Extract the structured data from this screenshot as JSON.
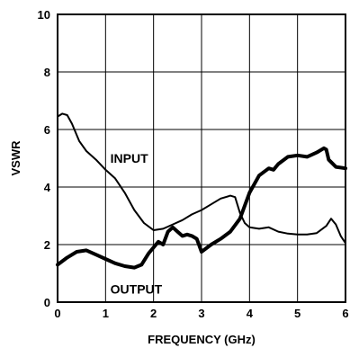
{
  "chart_data": {
    "type": "line",
    "xlabel": "FREQUENCY (GHz)",
    "ylabel": "VSWR",
    "xlim": [
      0,
      6
    ],
    "ylim": [
      0,
      10
    ],
    "x_ticks": [
      0,
      1,
      2,
      3,
      4,
      5,
      6
    ],
    "y_ticks": [
      0,
      2,
      4,
      6,
      8,
      10
    ],
    "grid": true,
    "legend": "none",
    "series": [
      {
        "name": "INPUT",
        "stroke_weight": "thin",
        "points": [
          [
            0,
            6.45
          ],
          [
            0.1,
            6.55
          ],
          [
            0.2,
            6.5
          ],
          [
            0.3,
            6.2
          ],
          [
            0.45,
            5.6
          ],
          [
            0.6,
            5.25
          ],
          [
            0.8,
            4.95
          ],
          [
            1.0,
            4.6
          ],
          [
            1.2,
            4.3
          ],
          [
            1.4,
            3.8
          ],
          [
            1.6,
            3.2
          ],
          [
            1.8,
            2.75
          ],
          [
            2.0,
            2.5
          ],
          [
            2.2,
            2.55
          ],
          [
            2.4,
            2.7
          ],
          [
            2.6,
            2.85
          ],
          [
            2.8,
            3.05
          ],
          [
            3.0,
            3.2
          ],
          [
            3.2,
            3.4
          ],
          [
            3.4,
            3.6
          ],
          [
            3.6,
            3.7
          ],
          [
            3.7,
            3.65
          ],
          [
            3.8,
            3.1
          ],
          [
            3.9,
            2.75
          ],
          [
            4.0,
            2.6
          ],
          [
            4.2,
            2.55
          ],
          [
            4.4,
            2.6
          ],
          [
            4.6,
            2.45
          ],
          [
            4.8,
            2.38
          ],
          [
            5.0,
            2.35
          ],
          [
            5.2,
            2.35
          ],
          [
            5.4,
            2.4
          ],
          [
            5.6,
            2.65
          ],
          [
            5.7,
            2.9
          ],
          [
            5.8,
            2.7
          ],
          [
            5.9,
            2.3
          ],
          [
            6.0,
            2.05
          ]
        ]
      },
      {
        "name": "OUTPUT",
        "stroke_weight": "thick",
        "points": [
          [
            0,
            1.3
          ],
          [
            0.2,
            1.55
          ],
          [
            0.4,
            1.75
          ],
          [
            0.6,
            1.8
          ],
          [
            0.8,
            1.65
          ],
          [
            1.0,
            1.5
          ],
          [
            1.2,
            1.35
          ],
          [
            1.4,
            1.25
          ],
          [
            1.6,
            1.2
          ],
          [
            1.75,
            1.3
          ],
          [
            1.9,
            1.7
          ],
          [
            2.1,
            2.1
          ],
          [
            2.2,
            2.0
          ],
          [
            2.3,
            2.45
          ],
          [
            2.4,
            2.6
          ],
          [
            2.5,
            2.45
          ],
          [
            2.6,
            2.3
          ],
          [
            2.7,
            2.35
          ],
          [
            2.8,
            2.3
          ],
          [
            2.9,
            2.2
          ],
          [
            3.0,
            1.75
          ],
          [
            3.2,
            2.0
          ],
          [
            3.4,
            2.2
          ],
          [
            3.6,
            2.45
          ],
          [
            3.8,
            2.9
          ],
          [
            3.9,
            3.35
          ],
          [
            4.0,
            3.8
          ],
          [
            4.2,
            4.4
          ],
          [
            4.4,
            4.65
          ],
          [
            4.5,
            4.6
          ],
          [
            4.6,
            4.8
          ],
          [
            4.8,
            5.05
          ],
          [
            5.0,
            5.1
          ],
          [
            5.2,
            5.05
          ],
          [
            5.4,
            5.2
          ],
          [
            5.55,
            5.35
          ],
          [
            5.6,
            5.3
          ],
          [
            5.65,
            4.95
          ],
          [
            5.8,
            4.7
          ],
          [
            6.0,
            4.65
          ]
        ]
      }
    ],
    "annotations": [
      {
        "text": "INPUT",
        "x": 1.1,
        "y": 4.85
      },
      {
        "text": "OUTPUT",
        "x": 1.1,
        "y": 0.3
      }
    ]
  }
}
